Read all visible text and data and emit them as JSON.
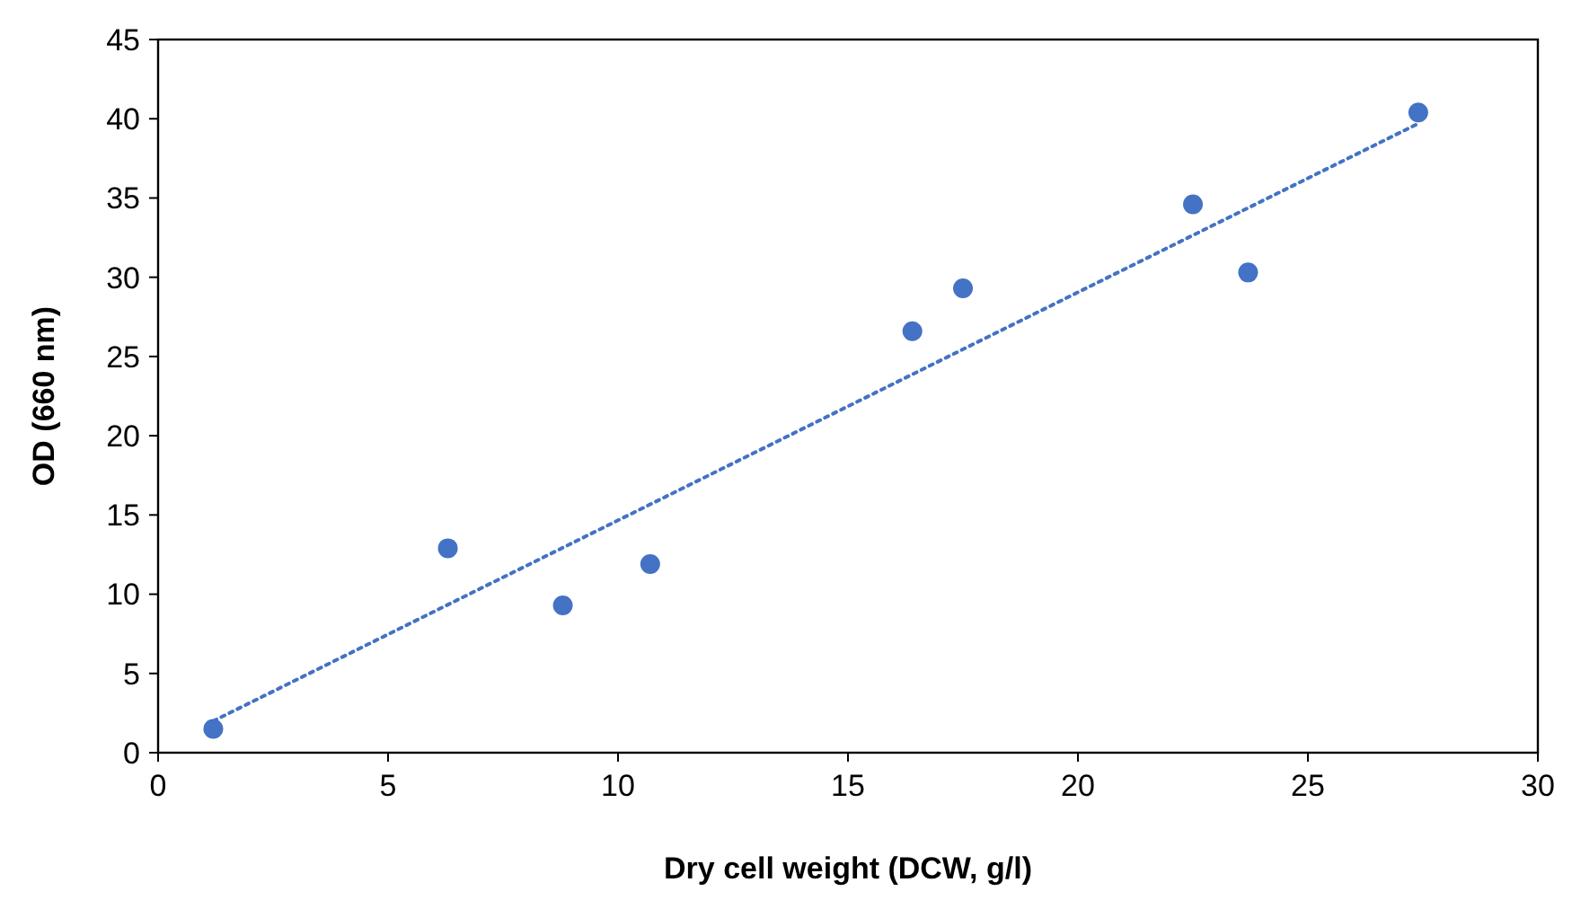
{
  "chart_data": {
    "type": "scatter",
    "xlabel": "Dry cell weight (DCW, g/l)",
    "ylabel": "OD (660 nm)",
    "xlim": [
      0,
      30
    ],
    "xticks": [
      0,
      5,
      10,
      15,
      20,
      25,
      30
    ],
    "ylim": [
      0,
      45
    ],
    "yticks": [
      0,
      5,
      10,
      15,
      20,
      25,
      30,
      35,
      40,
      45
    ],
    "grid": false,
    "marker": "circle",
    "series": [
      {
        "color": "#4472c4",
        "x": [
          1.2,
          6.3,
          8.8,
          10.7,
          16.4,
          17.5,
          22.5,
          23.7,
          27.4
        ],
        "values": [
          1.5,
          12.9,
          9.3,
          11.9,
          26.6,
          29.3,
          34.6,
          30.3,
          40.4
        ]
      },
      {
        "type": "line",
        "color": "#4472c4",
        "line_style": "dotted",
        "marker": "none",
        "x": [
          1.2,
          27.4
        ],
        "values": [
          2.0,
          39.7
        ]
      }
    ]
  }
}
